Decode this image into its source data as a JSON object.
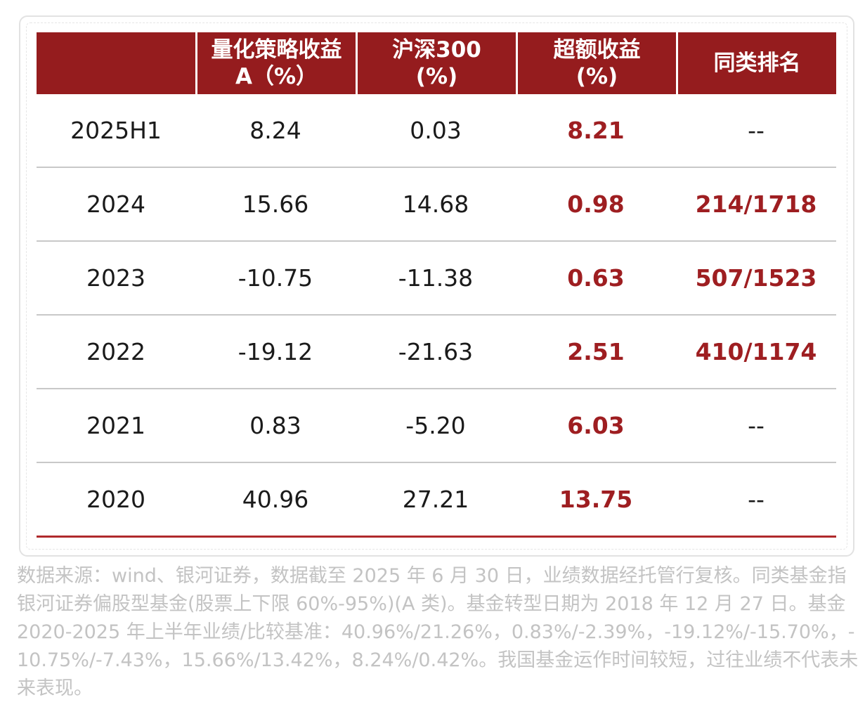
{
  "table": {
    "headers": [
      {
        "line1": "",
        "line2": ""
      },
      {
        "line1": "量化策略收益",
        "line2": "A（%）"
      },
      {
        "line1": "沪深300",
        "line2": "(%)"
      },
      {
        "line1": "超额收益",
        "line2": "(%)"
      },
      {
        "line1": "同类排名",
        "line2": ""
      }
    ],
    "rows": [
      {
        "period": "2025H1",
        "strategy_a": "8.24",
        "csi300": "0.03",
        "excess": "8.21",
        "rank": "--"
      },
      {
        "period": "2024",
        "strategy_a": "15.66",
        "csi300": "14.68",
        "excess": "0.98",
        "rank": "214/1718"
      },
      {
        "period": "2023",
        "strategy_a": "-10.75",
        "csi300": "-11.38",
        "excess": "0.63",
        "rank": "507/1523"
      },
      {
        "period": "2022",
        "strategy_a": "-19.12",
        "csi300": "-21.63",
        "excess": "2.51",
        "rank": "410/1174"
      },
      {
        "period": "2021",
        "strategy_a": "0.83",
        "csi300": "-5.20",
        "excess": "6.03",
        "rank": "--"
      },
      {
        "period": "2020",
        "strategy_a": "40.96",
        "csi300": "27.21",
        "excess": "13.75",
        "rank": "--"
      }
    ]
  },
  "footnote": "数据来源：wind、银河证券，数据截至 2025 年 6 月 30 日，业绩数据经托管行复核。同类基金指银河证券偏股型基金(股票上下限 60%-95%)(A 类)。基金转型日期为 2018 年 12 月 27 日。基金 2020-2025 年上半年业绩/比较基准：40.96%/21.26%，0.83%/-2.39%，-19.12%/-15.70%，-10.75%/-7.43%，15.66%/13.42%，8.24%/0.42%。我国基金运作时间较短，过往业绩不代表未来表现。",
  "colors": {
    "header_bg": "#951c1e",
    "emphasis_text": "#9e1e21",
    "bottom_rule": "#b02a2c",
    "row_divider": "#c8c8c8",
    "footnote_text": "#c3c3c3"
  }
}
